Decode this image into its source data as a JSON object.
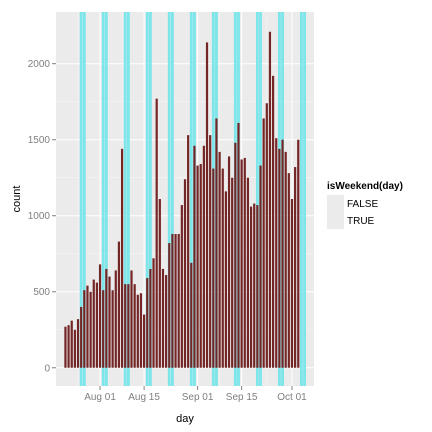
{
  "chart_data": {
    "type": "bar",
    "xlabel": "day",
    "ylabel": "count",
    "x_tick_labels": [
      "Aug 01",
      "Aug 15",
      "Sep 01",
      "Sep 15",
      "Oct 01"
    ],
    "x_tick_dates": [
      "2014-08-01",
      "2014-08-15",
      "2014-09-01",
      "2014-09-15",
      "2014-10-01"
    ],
    "y_tick_labels": [
      "0",
      "500",
      "1000",
      "1500",
      "2000"
    ],
    "y_ticks": [
      0,
      500,
      1000,
      1500,
      2000
    ],
    "xlim": [
      "2014-07-18",
      "2014-10-08"
    ],
    "ylim": [
      -120,
      2340
    ],
    "grid": true,
    "legend": {
      "title": "isWeekend(day)",
      "position": "right",
      "entries": [
        {
          "label": "FALSE",
          "color": "#ebebeb"
        },
        {
          "label": "TRUE",
          "color": "#ebebeb"
        }
      ]
    },
    "colors": {
      "panel_background": "#ebebeb",
      "gridline": "#ffffff",
      "weekend_band": "#7ce6ea",
      "bar": "#742626"
    },
    "weekend_days": [
      "2014-07-26",
      "2014-07-27",
      "2014-08-02",
      "2014-08-03",
      "2014-08-09",
      "2014-08-10",
      "2014-08-16",
      "2014-08-17",
      "2014-08-23",
      "2014-08-24",
      "2014-08-30",
      "2014-08-31",
      "2014-09-06",
      "2014-09-07",
      "2014-09-13",
      "2014-09-14",
      "2014-09-20",
      "2014-09-21",
      "2014-09-27",
      "2014-09-28",
      "2014-10-04",
      "2014-10-05"
    ],
    "series": [
      {
        "dates": [
          "2014-07-21",
          "2014-07-22",
          "2014-07-23",
          "2014-07-24",
          "2014-07-25",
          "2014-07-26",
          "2014-07-27",
          "2014-07-28",
          "2014-07-29",
          "2014-07-30",
          "2014-07-31",
          "2014-08-01",
          "2014-08-02",
          "2014-08-03",
          "2014-08-04",
          "2014-08-05",
          "2014-08-06",
          "2014-08-07",
          "2014-08-08",
          "2014-08-09",
          "2014-08-10",
          "2014-08-11",
          "2014-08-12",
          "2014-08-13",
          "2014-08-14",
          "2014-08-15",
          "2014-08-16",
          "2014-08-17",
          "2014-08-18",
          "2014-08-19",
          "2014-08-20",
          "2014-08-21",
          "2014-08-22",
          "2014-08-23",
          "2014-08-24",
          "2014-08-25",
          "2014-08-26",
          "2014-08-27",
          "2014-08-28",
          "2014-08-29",
          "2014-08-30",
          "2014-08-31",
          "2014-09-01",
          "2014-09-02",
          "2014-09-03",
          "2014-09-04",
          "2014-09-05",
          "2014-09-06",
          "2014-09-07",
          "2014-09-08",
          "2014-09-09",
          "2014-09-10",
          "2014-09-11",
          "2014-09-12",
          "2014-09-13",
          "2014-09-14",
          "2014-09-15",
          "2014-09-16",
          "2014-09-17",
          "2014-09-18",
          "2014-09-19",
          "2014-09-20",
          "2014-09-21",
          "2014-09-22",
          "2014-09-23",
          "2014-09-24",
          "2014-09-25",
          "2014-09-26",
          "2014-09-27",
          "2014-09-28",
          "2014-09-29",
          "2014-09-30",
          "2014-10-01",
          "2014-10-02",
          "2014-10-03"
        ],
        "values": [
          270,
          280,
          310,
          250,
          320,
          400,
          510,
          540,
          500,
          580,
          560,
          680,
          510,
          650,
          600,
          510,
          640,
          830,
          1440,
          550,
          550,
          640,
          550,
          480,
          490,
          350,
          590,
          650,
          720,
          1770,
          1110,
          650,
          610,
          820,
          880,
          880,
          880,
          1070,
          1240,
          1530,
          690,
          1460,
          1330,
          1340,
          1460,
          2140,
          1530,
          1310,
          1640,
          1420,
          1310,
          1160,
          1390,
          1250,
          1480,
          1610,
          1370,
          1380,
          1250,
          1060,
          1080,
          1070,
          1330,
          1640,
          1740,
          2210,
          1920,
          1510,
          1440,
          1500,
          1420,
          1280,
          1110,
          1320,
          1500
        ]
      }
    ]
  }
}
